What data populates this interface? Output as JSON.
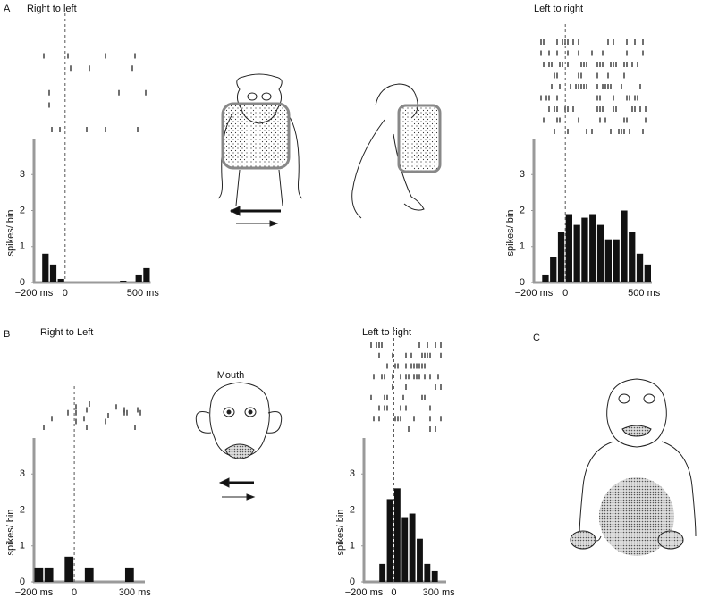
{
  "labels": {
    "panel_a": "A",
    "panel_b": "B",
    "panel_c": "C",
    "mouth": "Mouth"
  },
  "chart_data": [
    {
      "type": "histogram",
      "title": "Right to left",
      "ylabel": "spikes/ bin",
      "color": "#111111",
      "bins": [
        -200,
        -150,
        -100,
        -50,
        0,
        50,
        100,
        150,
        200,
        250,
        300,
        350,
        400,
        450,
        500,
        550
      ],
      "values": [
        0,
        0.8,
        0.5,
        0.1,
        0,
        0,
        0,
        0,
        0,
        0,
        0,
        0.05,
        0,
        0.2,
        0.4
      ],
      "xlim": [
        -200,
        550
      ],
      "xticks": [
        {
          "value": -200,
          "label": "−200 ms"
        },
        0,
        {
          "value": 500,
          "label": "500 ms"
        }
      ],
      "ylim": [
        0,
        4
      ],
      "yticks": [
        0,
        1,
        2,
        3
      ]
    },
    {
      "type": "histogram",
      "title": "Left to right",
      "ylabel": "spikes/ bin",
      "color": "#111111",
      "bins": [
        -150,
        -100,
        -50,
        0,
        50,
        100,
        150,
        200,
        250,
        300,
        350,
        400,
        450,
        500,
        550
      ],
      "values": [
        0.2,
        0.7,
        1.4,
        1.9,
        1.6,
        1.8,
        1.9,
        1.6,
        1.2,
        1.2,
        2.0,
        1.4,
        0.8,
        0.5
      ],
      "xlim": [
        -200,
        550
      ],
      "xticks": [
        {
          "value": -200,
          "label": "−200 ms"
        },
        0,
        {
          "value": 500,
          "label": "500 ms"
        }
      ],
      "ylim": [
        0,
        4
      ],
      "yticks": [
        0,
        1,
        2,
        3
      ]
    },
    {
      "type": "histogram",
      "title": "Right to Left",
      "ylabel": "spikes/ bin",
      "color": "#111111",
      "bins": [
        -200,
        -150,
        -100,
        -50,
        0,
        50,
        100,
        150,
        200,
        250,
        300,
        350
      ],
      "values": [
        0.4,
        0.4,
        0,
        0.7,
        0,
        0.4,
        0,
        0,
        0,
        0.4,
        0
      ],
      "xlim": [
        -200,
        350
      ],
      "xticks": [
        {
          "value": -200,
          "label": "−200 ms"
        },
        0,
        {
          "value": 300,
          "label": "300 ms"
        }
      ],
      "ylim": [
        0,
        4
      ],
      "yticks": [
        0,
        1,
        2,
        3
      ]
    },
    {
      "type": "histogram",
      "title": "Left to right",
      "ylabel": "spikes/ bin",
      "color": "#111111",
      "bins": [
        -100,
        -50,
        0,
        50,
        100,
        150,
        200,
        250,
        300
      ],
      "values": [
        0.5,
        2.3,
        2.6,
        1.8,
        1.9,
        1.2,
        0.5,
        0.3
      ],
      "xlim": [
        -200,
        350
      ],
      "xticks": [
        {
          "value": -200,
          "label": "−200 ms"
        },
        0,
        {
          "value": 300,
          "label": "300 ms"
        }
      ],
      "ylim": [
        0,
        4
      ],
      "yticks": [
        0,
        1,
        2,
        3
      ]
    }
  ]
}
